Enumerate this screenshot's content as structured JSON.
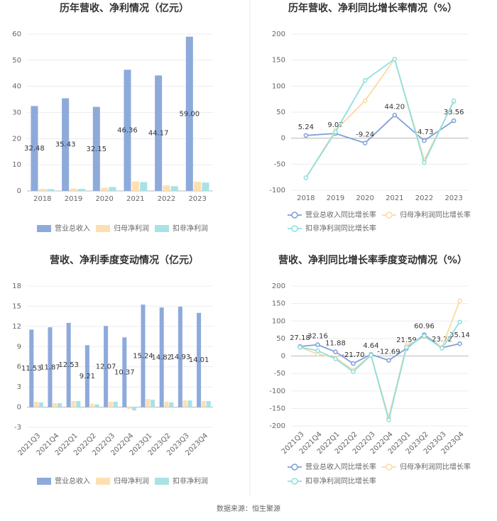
{
  "chart_data": [
    {
      "type": "bar",
      "title": "历年营收、净利情况（亿元）",
      "categories": [
        "2018",
        "2019",
        "2020",
        "2021",
        "2022",
        "2023"
      ],
      "series": [
        {
          "name": "营业总收入",
          "color": "#8eaadb",
          "values": [
            32.48,
            35.43,
            32.15,
            46.36,
            44.17,
            59.0
          ],
          "value_labels": [
            "32.48",
            "35.43",
            "32.15",
            "46.36",
            "44.17",
            "59.00"
          ],
          "show_labels": true
        },
        {
          "name": "归母净利润",
          "color": "#fde0b2",
          "values": [
            0.8,
            0.9,
            1.2,
            3.6,
            2.1,
            3.5
          ]
        },
        {
          "name": "扣非净利润",
          "color": "#a8e2e5",
          "values": [
            0.7,
            0.8,
            1.5,
            3.4,
            1.8,
            3.2
          ]
        }
      ],
      "ylim": [
        0,
        60
      ],
      "yticks": [
        0,
        10,
        20,
        30,
        40,
        50,
        60
      ],
      "grid": true
    },
    {
      "type": "line",
      "title": "历年营收、净利同比增长率情况（%）",
      "categories": [
        "2018",
        "2019",
        "2020",
        "2021",
        "2022",
        "2023"
      ],
      "series": [
        {
          "name": "营业总收入同比增长率",
          "color": "#7f9fd6",
          "values": [
            5.24,
            9.07,
            -9.24,
            44.2,
            -4.73,
            33.56
          ],
          "value_labels": [
            "5.24",
            "9.07",
            "-9.24",
            "44.20",
            "-4.73",
            "33.56"
          ],
          "show_labels": true
        },
        {
          "name": "归母净利润同比增长率",
          "color": "#fdd9a4",
          "values": [
            -76,
            15,
            72,
            152,
            -42,
            70
          ]
        },
        {
          "name": "扣非净利润同比增长率",
          "color": "#8edfe0",
          "values": [
            -76,
            12,
            111,
            152,
            -47,
            72
          ]
        }
      ],
      "ylim": [
        -100,
        200
      ],
      "yticks": [
        -100,
        -50,
        0,
        50,
        100,
        150,
        200
      ],
      "grid": true
    },
    {
      "type": "bar",
      "title": "营收、净利季度变动情况（亿元）",
      "categories": [
        "2021Q3",
        "2021Q4",
        "2022Q1",
        "2022Q2",
        "2022Q3",
        "2022Q4",
        "2023Q1",
        "2023Q2",
        "2023Q3",
        "2023Q4"
      ],
      "series": [
        {
          "name": "营业总收入",
          "color": "#8eaadb",
          "values": [
            11.53,
            11.87,
            12.53,
            9.21,
            12.07,
            10.37,
            15.24,
            14.82,
            14.93,
            14.01
          ],
          "show_labels": true
        },
        {
          "name": "归母净利润",
          "color": "#fde0b2",
          "values": [
            0.8,
            0.6,
            0.9,
            0.5,
            0.8,
            -0.3,
            1.2,
            0.8,
            1.0,
            0.9
          ]
        },
        {
          "name": "扣非净利润",
          "color": "#a8e2e5",
          "values": [
            0.7,
            0.6,
            0.9,
            0.4,
            0.8,
            -0.5,
            1.1,
            0.7,
            1.0,
            0.9
          ]
        }
      ],
      "ylim": [
        -3,
        18
      ],
      "yticks": [
        -3,
        0,
        3,
        6,
        9,
        12,
        15,
        18
      ],
      "grid": true
    },
    {
      "type": "line",
      "title": "营收、净利同比增长率季度变动情况（%）",
      "categories": [
        "2021Q3",
        "2021Q4",
        "2022Q1",
        "2022Q2",
        "2022Q3",
        "2022Q4",
        "2023Q1",
        "2023Q2",
        "2023Q3",
        "2023Q4"
      ],
      "series": [
        {
          "name": "营业总收入同比增长率",
          "color": "#7f9fd6",
          "values": [
            27.18,
            32.16,
            11.88,
            -21.7,
            4.64,
            -12.69,
            21.59,
            60.96,
            23.72,
            35.14
          ],
          "value_labels": [
            "27.18",
            "32.16",
            "11.88",
            "-21.70",
            "4.64",
            "-12.69",
            "21.59",
            "60.96",
            "23.72",
            "35.14"
          ],
          "show_labels": true
        },
        {
          "name": "归母净利润同比增长率",
          "color": "#fdd9a4",
          "values": [
            25,
            5,
            -5,
            -40,
            3,
            -175,
            30,
            55,
            25,
            158
          ]
        },
        {
          "name": "扣非净利润同比增长率",
          "color": "#8edfe0",
          "values": [
            25,
            15,
            -8,
            -45,
            2,
            -183,
            25,
            57,
            22,
            97
          ]
        }
      ],
      "ylim": [
        -200,
        200
      ],
      "yticks": [
        -200,
        -150,
        -100,
        -50,
        0,
        50,
        100,
        150,
        200
      ],
      "grid": true
    }
  ],
  "source": "数据来源：恒生聚源"
}
